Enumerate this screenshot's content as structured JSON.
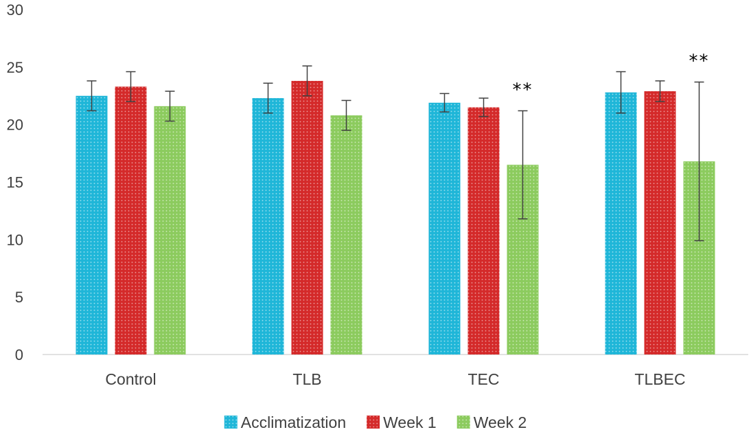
{
  "chart_data": {
    "type": "bar",
    "title": "",
    "xlabel": "",
    "ylabel": "",
    "ylim": [
      0,
      30
    ],
    "yticks": [
      0,
      5,
      10,
      15,
      20,
      25,
      30
    ],
    "categories": [
      "Control",
      "TLB",
      "TEC",
      "TLBEC"
    ],
    "series": [
      {
        "name": "Acclimatization",
        "color": "#1FB6D8",
        "values": [
          22.5,
          22.3,
          21.9,
          22.8
        ],
        "errors": [
          1.3,
          1.3,
          0.8,
          1.8
        ]
      },
      {
        "name": "Week 1",
        "color": "#D42A2A",
        "values": [
          23.3,
          23.8,
          21.5,
          22.9
        ],
        "errors": [
          1.3,
          1.3,
          0.8,
          0.9
        ]
      },
      {
        "name": "Week 2",
        "color": "#8CCB5E",
        "values": [
          21.6,
          20.8,
          16.5,
          16.8
        ],
        "errors": [
          1.3,
          1.3,
          4.7,
          6.9
        ]
      }
    ],
    "annotations": [
      {
        "category": "TEC",
        "series": "Week 2",
        "text": "**"
      },
      {
        "category": "TLBEC",
        "series": "Week 2",
        "text": "**"
      }
    ],
    "grid": false,
    "legend": "bottom"
  }
}
